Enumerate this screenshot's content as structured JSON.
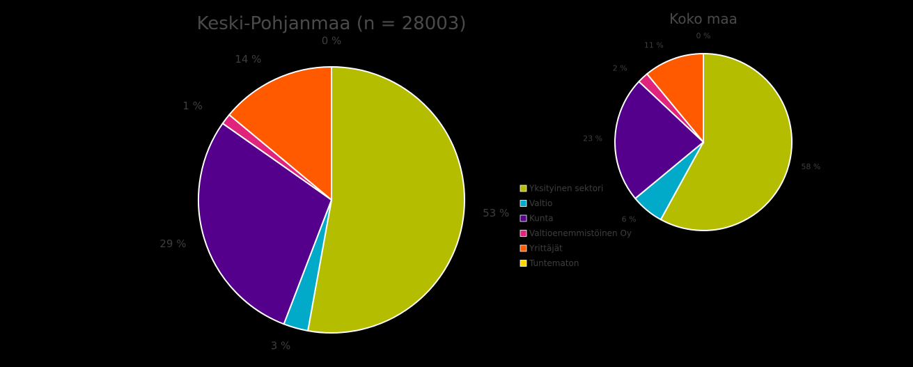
{
  "chart_data": [
    {
      "type": "pie",
      "title": "Keski-Pohjanmaa (n = 28003)",
      "slices": [
        {
          "name": "Yksityinen sektori",
          "value": 53,
          "label": "53 %",
          "color": "#b5bd00"
        },
        {
          "name": "Valtio",
          "value": 3,
          "label": "3 %",
          "color": "#00aac8"
        },
        {
          "name": "Kunta",
          "value": 29,
          "label": "29 %",
          "color": "#54008c"
        },
        {
          "name": "Valtioenemmistöinen Oy",
          "value": 1.3,
          "label": "1 %",
          "color": "#e0247c"
        },
        {
          "name": "Yrittäjät",
          "value": 14,
          "label": "14 %",
          "color": "#ff5a00"
        },
        {
          "name": "Tuntematon",
          "value": 0,
          "label": "0 %",
          "color": "#ffd700"
        }
      ]
    },
    {
      "type": "pie",
      "title": "Koko maa",
      "slices": [
        {
          "name": "Yksityinen sektori",
          "value": 58,
          "label": "58 %",
          "color": "#b5bd00"
        },
        {
          "name": "Valtio",
          "value": 6,
          "label": "6 %",
          "color": "#00aac8"
        },
        {
          "name": "Kunta",
          "value": 23,
          "label": "23 %",
          "color": "#54008c"
        },
        {
          "name": "Valtioenemmistöinen Oy",
          "value": 2,
          "label": "2 %",
          "color": "#e0247c"
        },
        {
          "name": "Yrittäjät",
          "value": 11,
          "label": "11 %",
          "color": "#ff5a00"
        },
        {
          "name": "Tuntematon",
          "value": 0,
          "label": "0 %",
          "color": "#ffd700"
        }
      ]
    }
  ],
  "legend": [
    {
      "label": "Yksityinen sektori",
      "color": "#b5bd00"
    },
    {
      "label": "Valtio",
      "color": "#00aac8"
    },
    {
      "label": "Kunta",
      "color": "#54008c"
    },
    {
      "label": "Valtioenemmistöinen Oy",
      "color": "#e0247c"
    },
    {
      "label": "Yrittäjät",
      "color": "#ff5a00"
    },
    {
      "label": "Tuntematon",
      "color": "#ffd700"
    }
  ]
}
